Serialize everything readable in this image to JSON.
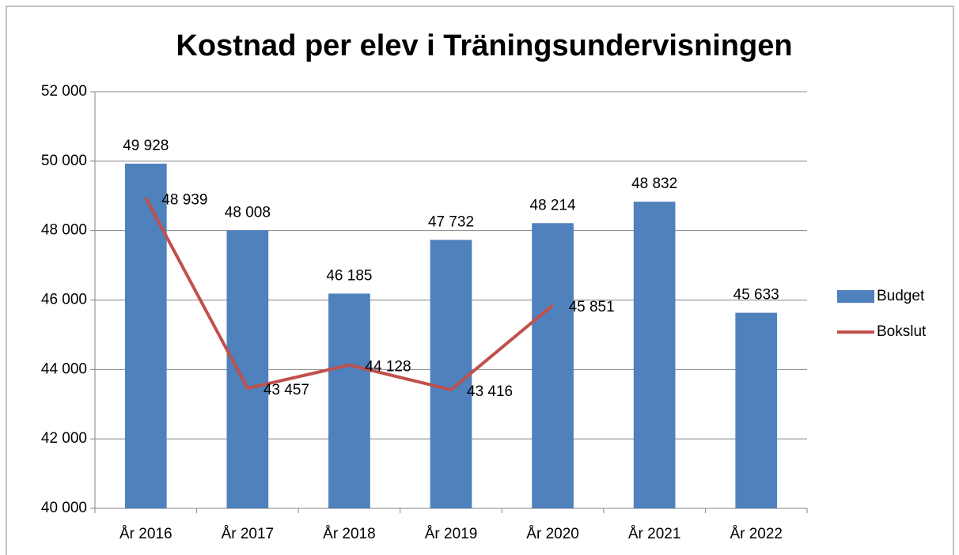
{
  "chart_data": {
    "type": "bar",
    "title": "Kostnad per elev i Träningsundervisningen",
    "categories": [
      "År 2016",
      "År 2017",
      "År 2018",
      "År 2019",
      "År 2020",
      "År 2021",
      "År 2022"
    ],
    "series": [
      {
        "name": "Budget",
        "type": "bar",
        "color": "#4f81bd",
        "values": [
          49928,
          48008,
          46185,
          47732,
          48214,
          48832,
          45633
        ],
        "value_labels": [
          "49 928",
          "48 008",
          "46 185",
          "47 732",
          "48 214",
          "48 832",
          "45 633"
        ]
      },
      {
        "name": "Bokslut",
        "type": "line",
        "color": "#c0504d",
        "values": [
          48939,
          43457,
          44128,
          43416,
          45851,
          null,
          null
        ],
        "value_labels": [
          "48 939",
          "43 457",
          "44 128",
          "43 416",
          "45 851",
          null,
          null
        ]
      }
    ],
    "ylim": [
      40000,
      52000
    ],
    "yticks": [
      {
        "value": 40000,
        "label": "40 000"
      },
      {
        "value": 42000,
        "label": "42 000"
      },
      {
        "value": 44000,
        "label": "44 000"
      },
      {
        "value": 46000,
        "label": "46 000"
      },
      {
        "value": 48000,
        "label": "48 000"
      },
      {
        "value": 50000,
        "label": "50 000"
      },
      {
        "value": 52000,
        "label": "52 000"
      }
    ],
    "grid": true,
    "legend": "right"
  }
}
